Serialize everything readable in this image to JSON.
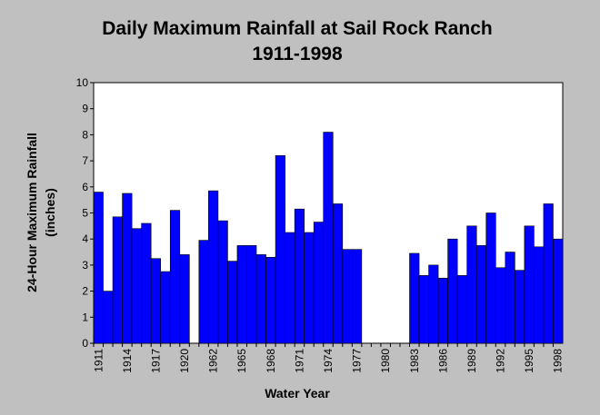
{
  "chart_data": {
    "type": "bar",
    "title": "Daily Maximum Rainfall at Sail Rock Ranch",
    "subtitle": "1911-1998",
    "xlabel": "Water Year",
    "ylabel": "24-Hour Maximum Rainfall",
    "ylabel2": "(inches)",
    "ylim": [
      0,
      10
    ],
    "yticks": [
      "0",
      "1",
      "2",
      "3",
      "4",
      "5",
      "6",
      "7",
      "8",
      "9",
      "10"
    ],
    "grid": false,
    "legend": "none",
    "bar_color": "#0000ff",
    "categories": [
      "1911",
      "1912",
      "1913",
      "1914",
      "1915",
      "1916",
      "1917",
      "1918",
      "1919",
      "1920",
      "1921",
      "1961",
      "1962",
      "1963",
      "1964",
      "1965",
      "1966",
      "1967",
      "1968",
      "1969",
      "1970",
      "1971",
      "1972",
      "1973",
      "1974",
      "1975",
      "1976",
      "1977",
      "1978",
      "1979",
      "1980",
      "1981",
      "1982",
      "1983",
      "1984",
      "1985",
      "1986",
      "1987",
      "1988",
      "1989",
      "1990",
      "1991",
      "1992",
      "1993",
      "1994",
      "1995",
      "1996",
      "1997",
      "1998"
    ],
    "tick_labels": [
      "1911",
      "1914",
      "1917",
      "1920",
      "1962",
      "1965",
      "1968",
      "1971",
      "1974",
      "1977",
      "1980",
      "1983",
      "1986",
      "1989",
      "1992",
      "1995",
      "1998"
    ],
    "values": [
      5.8,
      2.0,
      4.85,
      5.75,
      4.4,
      4.6,
      3.25,
      2.75,
      5.1,
      3.4,
      null,
      3.95,
      5.85,
      4.7,
      3.15,
      3.75,
      3.75,
      3.4,
      3.3,
      7.2,
      4.25,
      5.15,
      4.25,
      4.65,
      8.1,
      5.35,
      3.6,
      3.6,
      null,
      null,
      null,
      null,
      null,
      3.45,
      2.6,
      3.0,
      2.5,
      4.0,
      2.6,
      4.5,
      3.75,
      5.0,
      2.9,
      3.5,
      2.8,
      4.5,
      3.7,
      5.35,
      4.0
    ]
  }
}
